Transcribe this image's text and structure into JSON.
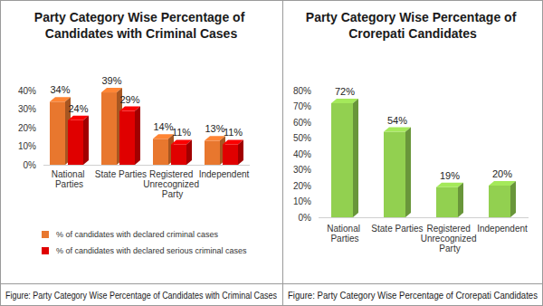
{
  "chart_data": [
    {
      "type": "bar",
      "title": "Party Category Wise Percentage of Candidates with Criminal Cases",
      "annotations": [
        "Figure: Party Category Wise Percentage of Candidates with Criminal Cases"
      ],
      "categories": [
        "National Parties",
        "State Parties",
        "Registered Unrecognized Party",
        "Independent"
      ],
      "series": [
        {
          "name": "% of candidates with declared criminal cases",
          "color": "#e8772e",
          "values": [
            34,
            39,
            14,
            13
          ],
          "value_labels": [
            "34%",
            "39%",
            "14%",
            "13%"
          ]
        },
        {
          "name": "% of candidates with declared serious criminal cases",
          "color": "#e00000",
          "values": [
            24,
            29,
            11,
            11
          ],
          "value_labels": [
            "24%",
            "29%",
            "11%",
            "11%"
          ]
        }
      ],
      "ylim": [
        0,
        40
      ],
      "yticks": [
        {
          "value": 0,
          "label": "0%"
        },
        {
          "value": 10,
          "label": "10%"
        },
        {
          "value": 20,
          "label": "20%"
        },
        {
          "value": 30,
          "label": "30%"
        },
        {
          "value": 40,
          "label": "40%"
        }
      ],
      "grid": false,
      "legend": "bottom",
      "data_labels": true
    },
    {
      "type": "bar",
      "title": "Party Category Wise Percentage of Crorepati Candidates",
      "annotations": [
        "Figure: Party Category Wise Percentage of Crorepati Candidates"
      ],
      "categories": [
        "National Parties",
        "State Parties",
        "Registered Unrecognized Party",
        "Independent"
      ],
      "values": [
        72,
        54,
        19,
        20
      ],
      "value_labels": [
        "72%",
        "54%",
        "19%",
        "20%"
      ],
      "color": "#92d050",
      "ylim": [
        0,
        80
      ],
      "yticks": [
        {
          "value": 0,
          "label": "0%"
        },
        {
          "value": 10,
          "label": "10%"
        },
        {
          "value": 20,
          "label": "20%"
        },
        {
          "value": 30,
          "label": "30%"
        },
        {
          "value": 40,
          "label": "40%"
        },
        {
          "value": 50,
          "label": "50%"
        },
        {
          "value": 60,
          "label": "60%"
        },
        {
          "value": 70,
          "label": "70%"
        },
        {
          "value": 80,
          "label": "80%"
        }
      ],
      "grid": false,
      "data_labels": true
    }
  ]
}
